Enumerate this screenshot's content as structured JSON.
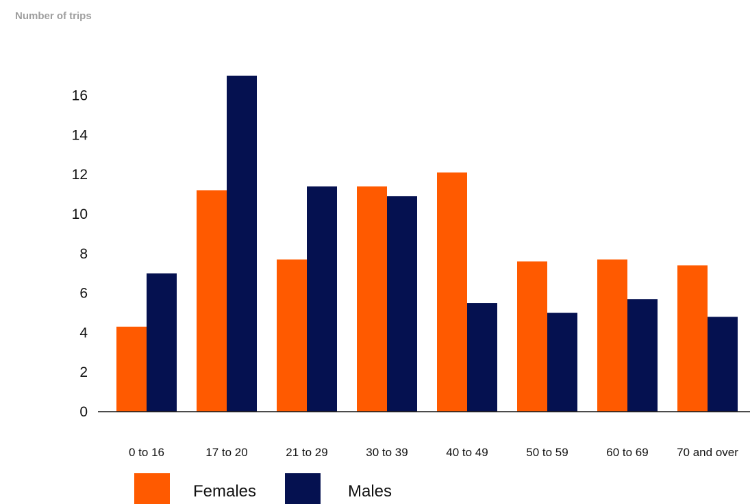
{
  "chart_data": {
    "type": "bar",
    "title": "",
    "xlabel": "",
    "ylabel": "Number of trips",
    "categories": [
      "0 to 16",
      "17 to 20",
      "21 to 29",
      "30 to 39",
      "40 to 49",
      "50 to 59",
      "60 to 69",
      "70 and over"
    ],
    "series": [
      {
        "name": "Females",
        "color": "#ff5a00",
        "values": [
          4.3,
          11.2,
          7.7,
          11.4,
          12.1,
          7.6,
          7.7,
          7.4
        ]
      },
      {
        "name": "Males",
        "color": "#051150",
        "values": [
          7.0,
          17.0,
          11.4,
          10.9,
          5.5,
          5.0,
          5.7,
          4.8
        ]
      }
    ],
    "yticks": [
      0,
      2,
      4,
      6,
      8,
      10,
      12,
      14,
      16
    ],
    "ylim": [
      0,
      17
    ],
    "grid": false,
    "legend_position": "bottom-left"
  }
}
